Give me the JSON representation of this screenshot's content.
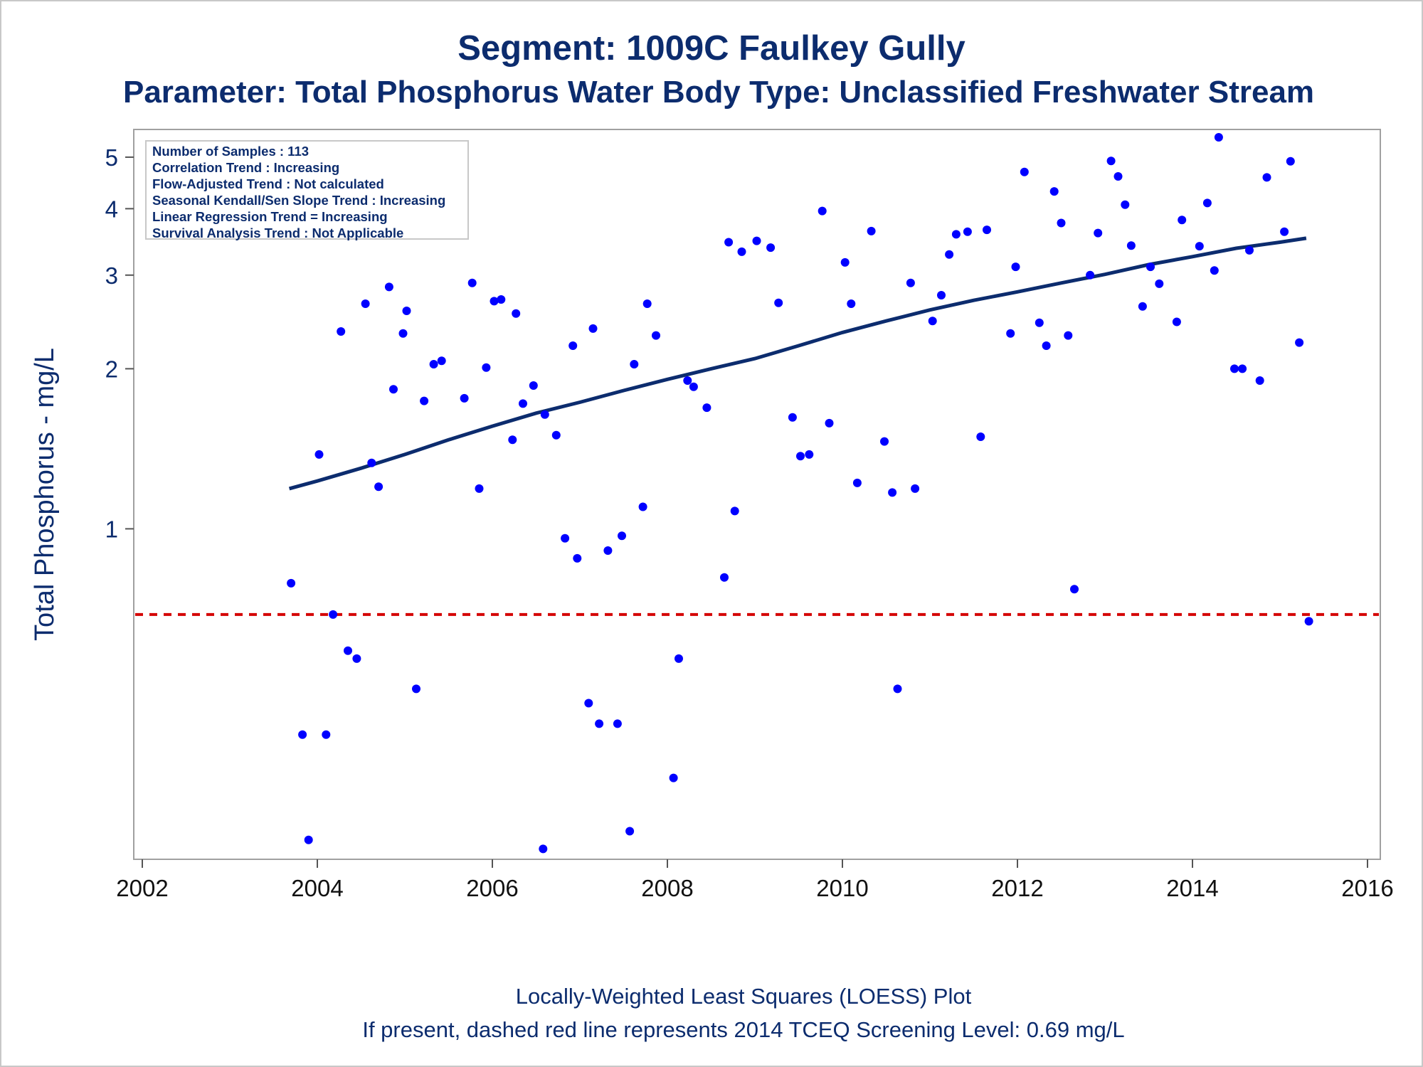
{
  "title": "Segment: 1009C  Faulkey Gully",
  "subtitle": "Parameter: Total Phosphorus   Water Body Type: Unclassified Freshwater Stream",
  "stats": [
    "Number of Samples : 113",
    "Correlation Trend : Increasing",
    "Flow-Adjusted Trend : Not calculated",
    "Seasonal Kendall/Sen Slope Trend : Increasing",
    "Linear Regression Trend = Increasing",
    "Survival Analysis Trend : Not Applicable"
  ],
  "footer": {
    "line1": "Locally-Weighted Least Squares (LOESS) Plot",
    "line2": "If present, dashed red line represents 2014 TCEQ Screening Level: 0.69 mg/L"
  },
  "colors": {
    "points": "#0000ff",
    "loess": "#0c2c6e",
    "screening": "#d40000",
    "text": "#0c2c6e"
  },
  "chart_data": {
    "type": "scatter",
    "ylabel": "Total Phosphorus - mg/L",
    "xlabel": "",
    "y_scale": "log",
    "xlim": [
      2002,
      2016
    ],
    "ylim": [
      0.245,
      5.5
    ],
    "x_ticks": [
      2002,
      2004,
      2006,
      2008,
      2010,
      2012,
      2014,
      2016
    ],
    "y_ticks": [
      1,
      2,
      3,
      4,
      5
    ],
    "screening_level": 0.69,
    "points": [
      [
        2003.7,
        0.79
      ],
      [
        2003.83,
        0.41
      ],
      [
        2003.9,
        0.26
      ],
      [
        2004.02,
        1.38
      ],
      [
        2004.1,
        0.41
      ],
      [
        2004.18,
        0.69
      ],
      [
        2004.27,
        2.35
      ],
      [
        2004.35,
        0.59
      ],
      [
        2004.45,
        0.57
      ],
      [
        2004.55,
        2.65
      ],
      [
        2004.62,
        1.33
      ],
      [
        2004.7,
        1.2
      ],
      [
        2004.82,
        2.85
      ],
      [
        2004.87,
        1.83
      ],
      [
        2004.98,
        2.33
      ],
      [
        2005.02,
        2.57
      ],
      [
        2005.13,
        0.5
      ],
      [
        2005.22,
        1.74
      ],
      [
        2005.33,
        2.04
      ],
      [
        2005.42,
        2.07
      ],
      [
        2005.68,
        1.76
      ],
      [
        2005.77,
        2.9
      ],
      [
        2005.85,
        1.19
      ],
      [
        2005.93,
        2.01
      ],
      [
        2006.02,
        2.68
      ],
      [
        2006.1,
        2.7
      ],
      [
        2006.23,
        1.47
      ],
      [
        2006.27,
        2.54
      ],
      [
        2006.35,
        1.72
      ],
      [
        2006.47,
        1.86
      ],
      [
        2006.58,
        0.25
      ],
      [
        2006.6,
        1.64
      ],
      [
        2006.73,
        1.5
      ],
      [
        2006.83,
        0.96
      ],
      [
        2006.92,
        2.21
      ],
      [
        2006.97,
        0.88
      ],
      [
        2007.1,
        0.47
      ],
      [
        2007.15,
        2.38
      ],
      [
        2007.22,
        0.43
      ],
      [
        2007.32,
        0.91
      ],
      [
        2007.43,
        0.43
      ],
      [
        2007.48,
        0.97
      ],
      [
        2007.57,
        0.27
      ],
      [
        2007.62,
        2.04
      ],
      [
        2007.72,
        1.1
      ],
      [
        2007.77,
        2.65
      ],
      [
        2007.87,
        2.31
      ],
      [
        2008.07,
        0.34
      ],
      [
        2008.13,
        0.57
      ],
      [
        2008.23,
        1.9
      ],
      [
        2008.3,
        1.85
      ],
      [
        2008.45,
        1.69
      ],
      [
        2008.65,
        0.81
      ],
      [
        2008.7,
        3.46
      ],
      [
        2008.77,
        1.08
      ],
      [
        2008.85,
        3.32
      ],
      [
        2009.02,
        3.48
      ],
      [
        2009.18,
        3.38
      ],
      [
        2009.27,
        2.66
      ],
      [
        2009.43,
        1.62
      ],
      [
        2009.52,
        1.37
      ],
      [
        2009.62,
        1.38
      ],
      [
        2009.77,
        3.96
      ],
      [
        2009.85,
        1.58
      ],
      [
        2010.03,
        3.17
      ],
      [
        2010.1,
        2.65
      ],
      [
        2010.17,
        1.22
      ],
      [
        2010.33,
        3.63
      ],
      [
        2010.48,
        1.46
      ],
      [
        2010.57,
        1.17
      ],
      [
        2010.63,
        0.5
      ],
      [
        2010.78,
        2.9
      ],
      [
        2010.83,
        1.19
      ],
      [
        2011.03,
        2.46
      ],
      [
        2011.13,
        2.75
      ],
      [
        2011.22,
        3.28
      ],
      [
        2011.3,
        3.58
      ],
      [
        2011.43,
        3.62
      ],
      [
        2011.58,
        1.49
      ],
      [
        2011.65,
        3.65
      ],
      [
        2011.92,
        2.33
      ],
      [
        2011.98,
        3.11
      ],
      [
        2012.08,
        4.69
      ],
      [
        2012.25,
        2.44
      ],
      [
        2012.33,
        2.21
      ],
      [
        2012.42,
        4.31
      ],
      [
        2012.5,
        3.76
      ],
      [
        2012.58,
        2.31
      ],
      [
        2012.65,
        0.77
      ],
      [
        2012.83,
        3.0
      ],
      [
        2012.92,
        3.6
      ],
      [
        2013.07,
        4.92
      ],
      [
        2013.15,
        4.6
      ],
      [
        2013.23,
        4.07
      ],
      [
        2013.3,
        3.41
      ],
      [
        2013.43,
        2.62
      ],
      [
        2013.52,
        3.11
      ],
      [
        2013.62,
        2.89
      ],
      [
        2013.82,
        2.45
      ],
      [
        2013.88,
        3.81
      ],
      [
        2014.08,
        3.4
      ],
      [
        2014.17,
        4.1
      ],
      [
        2014.25,
        3.06
      ],
      [
        2014.3,
        5.45
      ],
      [
        2014.48,
        2.0
      ],
      [
        2014.57,
        2.0
      ],
      [
        2014.65,
        3.34
      ],
      [
        2014.77,
        1.9
      ],
      [
        2014.85,
        4.58
      ],
      [
        2015.05,
        3.62
      ],
      [
        2015.12,
        4.91
      ],
      [
        2015.22,
        2.24
      ],
      [
        2015.33,
        0.67
      ]
    ],
    "loess": [
      [
        2003.68,
        1.19
      ],
      [
        2004.0,
        1.23
      ],
      [
        2004.5,
        1.3
      ],
      [
        2005.0,
        1.38
      ],
      [
        2005.5,
        1.47
      ],
      [
        2006.0,
        1.56
      ],
      [
        2006.5,
        1.65
      ],
      [
        2007.0,
        1.73
      ],
      [
        2007.5,
        1.82
      ],
      [
        2008.0,
        1.91
      ],
      [
        2008.5,
        2.0
      ],
      [
        2009.0,
        2.09
      ],
      [
        2009.5,
        2.21
      ],
      [
        2010.0,
        2.34
      ],
      [
        2010.5,
        2.46
      ],
      [
        2011.0,
        2.58
      ],
      [
        2011.5,
        2.69
      ],
      [
        2012.0,
        2.79
      ],
      [
        2012.5,
        2.9
      ],
      [
        2013.0,
        3.01
      ],
      [
        2013.5,
        3.14
      ],
      [
        2014.0,
        3.25
      ],
      [
        2014.5,
        3.37
      ],
      [
        2015.0,
        3.46
      ],
      [
        2015.3,
        3.52
      ]
    ]
  }
}
